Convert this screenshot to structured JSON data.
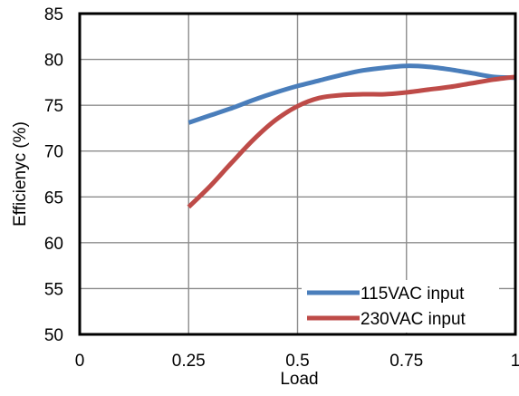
{
  "chart_data": {
    "type": "line",
    "title": "",
    "xlabel": "Load",
    "ylabel": "Efficienyc (%)",
    "xlim": [
      0,
      1
    ],
    "ylim": [
      50,
      85
    ],
    "x_ticks": [
      0,
      0.25,
      0.5,
      0.75,
      1
    ],
    "x_tick_labels": [
      "0",
      "0.25",
      "0.5",
      "0.75",
      "1"
    ],
    "y_ticks": [
      50,
      55,
      60,
      65,
      70,
      75,
      80,
      85
    ],
    "y_tick_labels": [
      "50",
      "55",
      "60",
      "65",
      "70",
      "75",
      "80",
      "85"
    ],
    "grid": true,
    "legend_position": "bottom-right",
    "series": [
      {
        "name": "115VAC input",
        "color": "#4a7ebb",
        "x": [
          0.25,
          0.3,
          0.35,
          0.4,
          0.45,
          0.5,
          0.55,
          0.6,
          0.65,
          0.7,
          0.75,
          0.8,
          0.85,
          0.9,
          0.95,
          1.0
        ],
        "y": [
          73.1,
          73.9,
          74.7,
          75.6,
          76.4,
          77.1,
          77.7,
          78.3,
          78.8,
          79.1,
          79.3,
          79.2,
          78.9,
          78.5,
          78.1,
          78.0
        ]
      },
      {
        "name": "230VAC input",
        "color": "#be4b48",
        "x": [
          0.25,
          0.3,
          0.35,
          0.4,
          0.45,
          0.5,
          0.55,
          0.6,
          0.65,
          0.7,
          0.75,
          0.8,
          0.85,
          0.9,
          0.95,
          1.0
        ],
        "y": [
          63.9,
          66.2,
          68.8,
          71.3,
          73.4,
          74.9,
          75.8,
          76.1,
          76.2,
          76.2,
          76.4,
          76.7,
          77.0,
          77.4,
          77.8,
          78.1
        ]
      }
    ]
  }
}
